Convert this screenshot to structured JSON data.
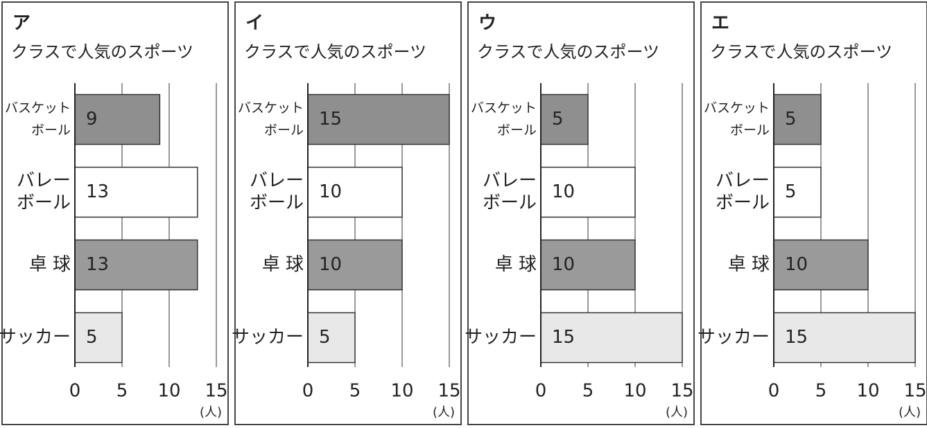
{
  "chart_data": [
    {
      "type": "bar",
      "label": "ア",
      "title": "クラスで人気のスポーツ",
      "categories": [
        [
          "バスケット",
          "ボール"
        ],
        [
          "バレー",
          "ボール"
        ],
        [
          "卓 球"
        ],
        [
          "サッカー"
        ]
      ],
      "values": [
        9,
        13,
        13,
        5
      ],
      "colors": [
        "#8f8f8f",
        "#ffffff",
        "#9a9a9a",
        "#e8e8e8"
      ],
      "xlim": [
        0,
        15
      ],
      "xticks": [
        0,
        5,
        10,
        15
      ],
      "unit": "(人)",
      "grid": true
    },
    {
      "type": "bar",
      "label": "イ",
      "title": "クラスで人気のスポーツ",
      "categories": [
        [
          "バスケット",
          "ボール"
        ],
        [
          "バレー",
          "ボール"
        ],
        [
          "卓 球"
        ],
        [
          "サッカー"
        ]
      ],
      "values": [
        15,
        10,
        10,
        5
      ],
      "colors": [
        "#8f8f8f",
        "#ffffff",
        "#9a9a9a",
        "#e8e8e8"
      ],
      "xlim": [
        0,
        15
      ],
      "xticks": [
        0,
        5,
        10,
        15
      ],
      "unit": "(人)",
      "grid": true
    },
    {
      "type": "bar",
      "label": "ウ",
      "title": "クラスで人気のスポーツ",
      "categories": [
        [
          "バスケット",
          "ボール"
        ],
        [
          "バレー",
          "ボール"
        ],
        [
          "卓 球"
        ],
        [
          "サッカー"
        ]
      ],
      "values": [
        5,
        10,
        10,
        15
      ],
      "colors": [
        "#8f8f8f",
        "#ffffff",
        "#9a9a9a",
        "#e8e8e8"
      ],
      "xlim": [
        0,
        15
      ],
      "xticks": [
        0,
        5,
        10,
        15
      ],
      "unit": "(人)",
      "grid": true
    },
    {
      "type": "bar",
      "label": "エ",
      "title": "クラスで人気のスポーツ",
      "categories": [
        [
          "バスケット",
          "ボール"
        ],
        [
          "バレー",
          "ボール"
        ],
        [
          "卓 球"
        ],
        [
          "サッカー"
        ]
      ],
      "values": [
        5,
        5,
        10,
        15
      ],
      "colors": [
        "#8f8f8f",
        "#ffffff",
        "#9a9a9a",
        "#e8e8e8"
      ],
      "xlim": [
        0,
        15
      ],
      "xticks": [
        0,
        5,
        10,
        15
      ],
      "unit": "(人)",
      "grid": true
    }
  ]
}
